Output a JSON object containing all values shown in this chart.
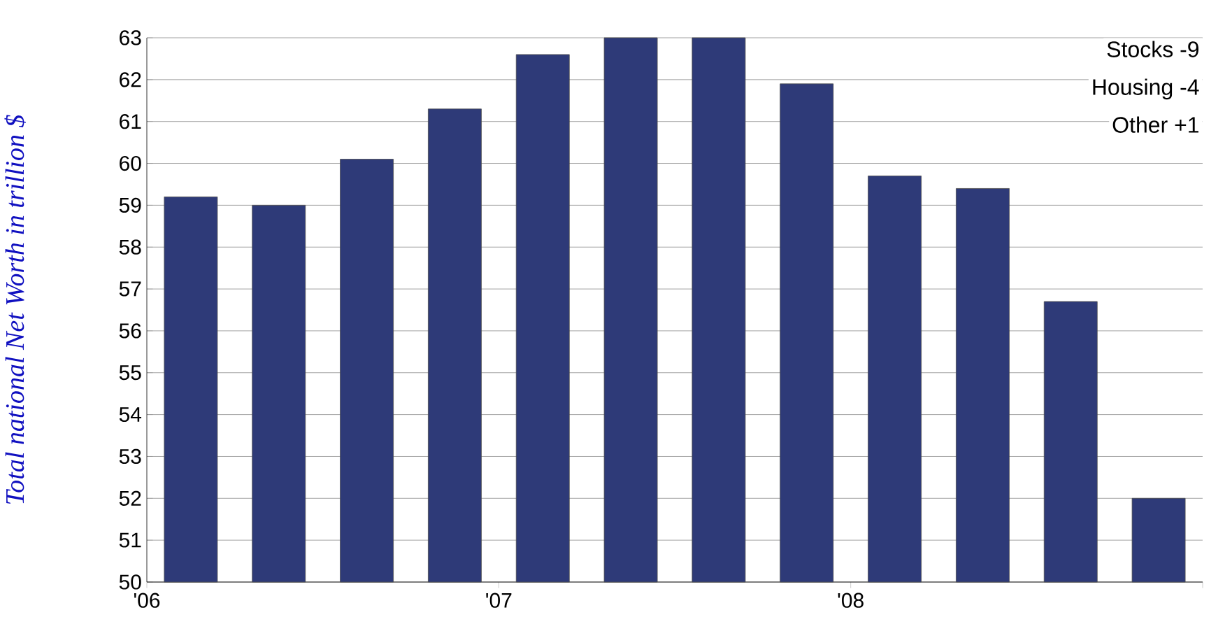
{
  "chart_data": {
    "type": "bar",
    "ylabel": "Total national Net Worth in trillion $",
    "color": "#2e3a78",
    "x": [
      2006.125,
      2006.375,
      2006.625,
      2006.875,
      2007.125,
      2007.375,
      2007.625,
      2007.875,
      2008.125,
      2008.375,
      2008.625,
      2008.875
    ],
    "values": [
      59.2,
      59.0,
      60.1,
      61.3,
      62.6,
      63.0,
      63.0,
      61.9,
      59.7,
      59.4,
      56.7,
      52.0
    ],
    "xlim": [
      2006,
      2009
    ],
    "xticks": [
      {
        "value": 2006,
        "label": "'06"
      },
      {
        "value": 2007,
        "label": "'07"
      },
      {
        "value": 2008,
        "label": "'08"
      },
      {
        "value": 2009,
        "label": null
      }
    ],
    "ylim": [
      50,
      63
    ],
    "yticks": [
      50,
      51,
      52,
      53,
      54,
      55,
      56,
      57,
      58,
      59,
      60,
      61,
      62,
      63
    ],
    "grid": "y",
    "annotations": [
      "Stocks    -9",
      "Housing  -4",
      "Other     +1"
    ]
  }
}
